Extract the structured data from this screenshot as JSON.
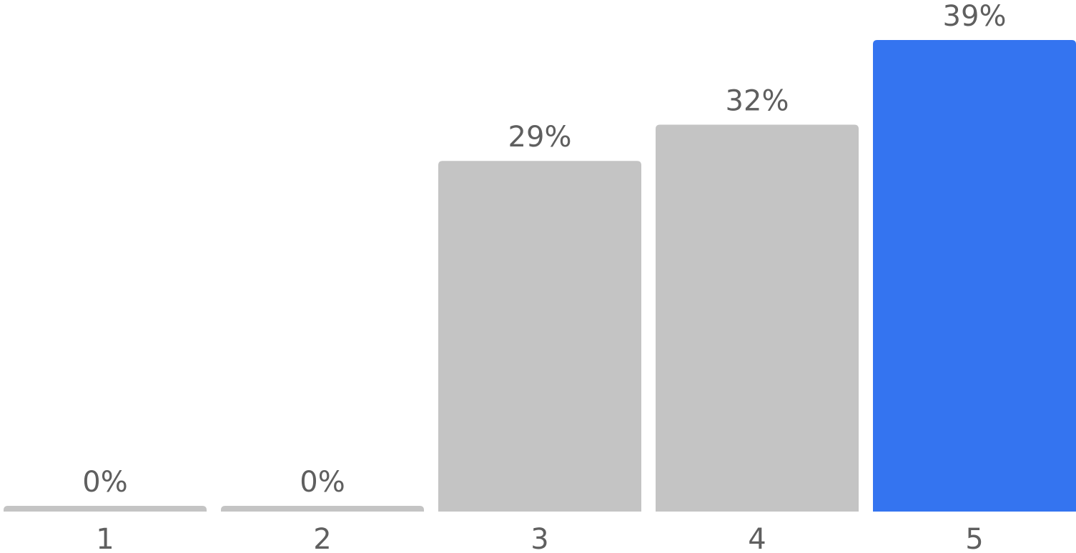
{
  "chart_data": {
    "type": "bar",
    "categories": [
      "1",
      "2",
      "3",
      "4",
      "5"
    ],
    "values": [
      0,
      0,
      29,
      32,
      39
    ],
    "value_labels": [
      "0%",
      "0%",
      "29%",
      "32%",
      "39%"
    ],
    "ylim": [
      0,
      39
    ],
    "grid": false,
    "highlight_index": 4,
    "colors": {
      "bar": "#c4c4c4",
      "highlight": "#3474f0",
      "text": "#5f5f5f"
    }
  }
}
